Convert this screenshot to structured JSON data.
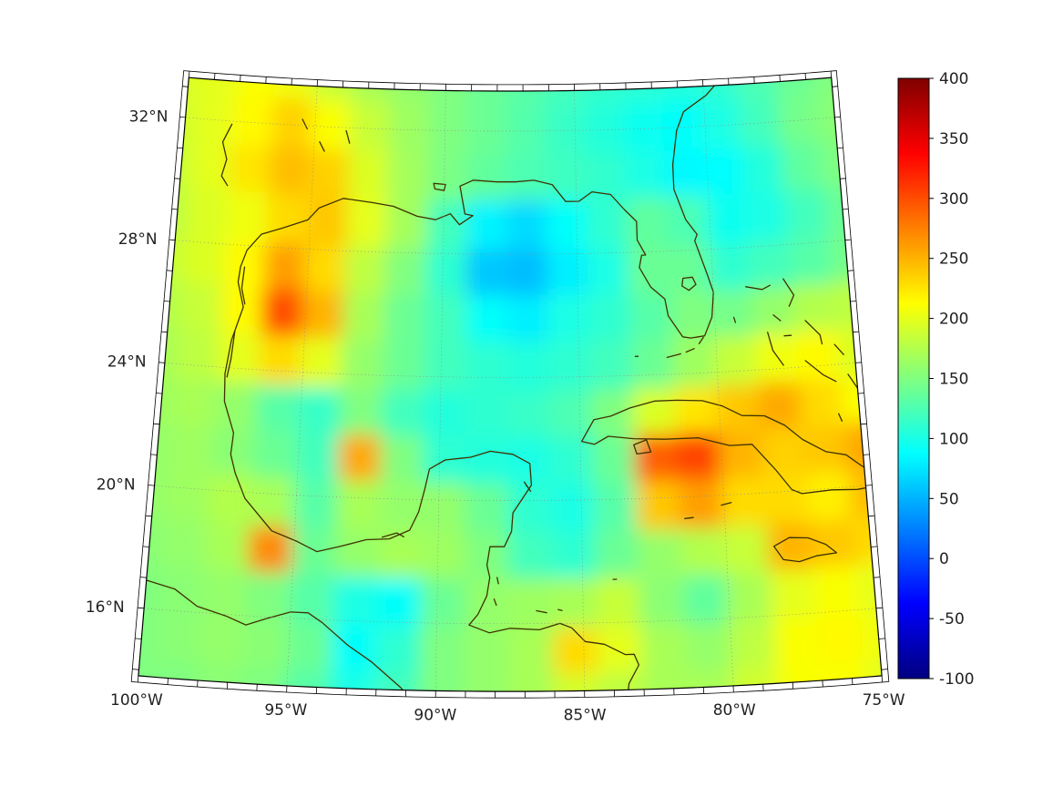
{
  "figure": {
    "background": "#ffffff",
    "description": "Filled-color geographic field over the Gulf of Mexico and western Caribbean on a conic projection with a jet colorbar"
  },
  "map": {
    "lat_ticks": [
      {
        "lat": 32,
        "label": "32°N"
      },
      {
        "lat": 28,
        "label": "28°N"
      },
      {
        "lat": 24,
        "label": "24°N"
      },
      {
        "lat": 20,
        "label": "20°N"
      },
      {
        "lat": 16,
        "label": "16°N"
      }
    ],
    "lon_ticks": [
      {
        "lon": -100,
        "label": "100°W"
      },
      {
        "lon": -95,
        "label": "95°W"
      },
      {
        "lon": -90,
        "label": "90°W"
      },
      {
        "lon": -85,
        "label": "85°W"
      },
      {
        "lon": -80,
        "label": "80°W"
      },
      {
        "lon": -75,
        "label": "75°W"
      }
    ],
    "frame_color": "#000000",
    "graticule_color": "#8c8c8c"
  },
  "colorbar": {
    "min": -100,
    "max": 400,
    "colormap": "jet",
    "ticks": [
      400,
      350,
      300,
      250,
      200,
      150,
      100,
      50,
      0,
      -50,
      -100
    ],
    "tick_labels": [
      "400",
      "350",
      "300",
      "250",
      "200",
      "150",
      "100",
      "50",
      "0",
      "-50",
      "-100"
    ]
  },
  "chart_data": {
    "type": "heatmap",
    "projection": "conic (Lambert-like), Gulf of Mexico and western Caribbean",
    "lon_range": [
      -100,
      -75
    ],
    "lat_range": [
      13.8,
      33.3
    ],
    "value_range": [
      -100,
      400
    ],
    "colormap": "jet",
    "coastline_color": "#3e3200",
    "graticule_lons": [
      -95,
      -90,
      -85,
      -80
    ],
    "graticule_lats": [
      16,
      20,
      24,
      28,
      32
    ],
    "grid_lons": [
      -100.25,
      -98.75,
      -97.25,
      -95.75,
      -94.25,
      -92.75,
      -91.25,
      -89.75,
      -88.25,
      -86.75,
      -85.25,
      -83.75,
      -82.25,
      -80.75,
      -79.25,
      -77.75,
      -76.25,
      -74.75
    ],
    "grid_lats": [
      33.5,
      32.0,
      30.4,
      28.9,
      27.3,
      25.8,
      24.3,
      22.7,
      21.2,
      19.7,
      18.1,
      16.6,
      15.0,
      13.5
    ],
    "values": [
      [
        195,
        200,
        210,
        205,
        185,
        170,
        160,
        150,
        140,
        130,
        120,
        112,
        108,
        105,
        110,
        125,
        140,
        150
      ],
      [
        190,
        200,
        215,
        235,
        210,
        185,
        165,
        150,
        140,
        128,
        115,
        105,
        95,
        90,
        100,
        120,
        145,
        155
      ],
      [
        185,
        200,
        225,
        245,
        235,
        195,
        168,
        148,
        135,
        125,
        118,
        112,
        100,
        85,
        88,
        105,
        135,
        150
      ],
      [
        180,
        195,
        205,
        230,
        240,
        200,
        168,
        120,
        82,
        70,
        90,
        110,
        135,
        125,
        95,
        100,
        120,
        140
      ],
      [
        185,
        195,
        215,
        260,
        230,
        180,
        150,
        110,
        60,
        55,
        80,
        100,
        140,
        140,
        110,
        120,
        130,
        145
      ],
      [
        175,
        185,
        215,
        300,
        250,
        170,
        140,
        120,
        90,
        80,
        100,
        110,
        130,
        150,
        145,
        160,
        175,
        180
      ],
      [
        170,
        180,
        200,
        230,
        200,
        160,
        140,
        120,
        110,
        105,
        110,
        120,
        140,
        165,
        185,
        205,
        215,
        195
      ],
      [
        165,
        170,
        160,
        130,
        115,
        150,
        120,
        105,
        110,
        115,
        125,
        150,
        195,
        225,
        240,
        255,
        230,
        210
      ],
      [
        160,
        165,
        155,
        140,
        120,
        255,
        150,
        110,
        105,
        100,
        110,
        140,
        290,
        305,
        250,
        235,
        240,
        255
      ],
      [
        160,
        165,
        175,
        170,
        130,
        170,
        160,
        160,
        140,
        110,
        100,
        130,
        240,
        260,
        230,
        230,
        220,
        245
      ],
      [
        155,
        160,
        170,
        270,
        140,
        160,
        170,
        165,
        150,
        120,
        110,
        140,
        160,
        175,
        185,
        250,
        240,
        230
      ],
      [
        150,
        155,
        160,
        150,
        130,
        100,
        90,
        140,
        160,
        165,
        170,
        185,
        155,
        135,
        170,
        200,
        210,
        200
      ],
      [
        150,
        155,
        160,
        155,
        140,
        90,
        110,
        150,
        160,
        170,
        230,
        200,
        170,
        160,
        180,
        210,
        215,
        205
      ],
      [
        150,
        150,
        155,
        150,
        130,
        100,
        120,
        150,
        160,
        170,
        190,
        180,
        170,
        170,
        190,
        210,
        210,
        200
      ]
    ]
  }
}
